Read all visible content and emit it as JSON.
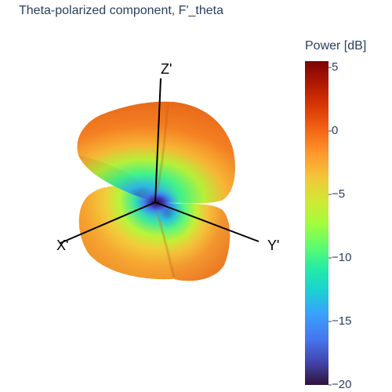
{
  "title": "Theta-polarized component, F'_theta",
  "chart_data": {
    "type": "surface",
    "title": "Theta-polarized component, F'_theta",
    "axes": {
      "x": "X'",
      "y": "Y'",
      "z": "Z'"
    },
    "colorbar": {
      "title": "Power [dB]",
      "range": [
        -20,
        5.5
      ],
      "ticks": [
        {
          "value": 5,
          "label": "5"
        },
        {
          "value": 0,
          "label": "0"
        },
        {
          "value": -5,
          "label": "−5"
        },
        {
          "value": -10,
          "label": "−10"
        },
        {
          "value": -15,
          "label": "−15"
        },
        {
          "value": -20,
          "label": "−20"
        }
      ],
      "colorscale": "turbo"
    },
    "lobes": [
      {
        "name": "upper lobe",
        "peak_db": 1
      },
      {
        "name": "lower-left lobe",
        "peak_db": -4
      },
      {
        "name": "lower-right lobe",
        "peak_db": -2
      }
    ],
    "null_db": -20
  }
}
